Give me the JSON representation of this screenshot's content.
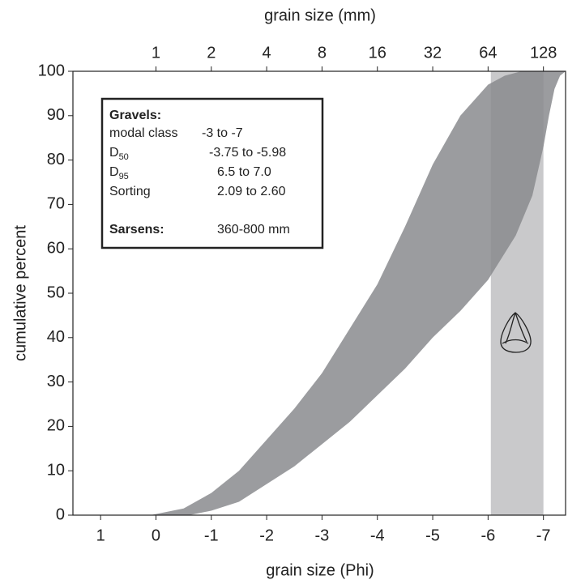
{
  "chart_data": {
    "type": "band",
    "x_label": "grain size (Phi)",
    "x2_label": "grain size (mm)",
    "y_label": "cumulative percent",
    "xlim": [
      1.5,
      -7.4
    ],
    "xticks": [
      1,
      0,
      -1,
      -2,
      -3,
      -4,
      -5,
      -6,
      -7
    ],
    "x2ticks": [
      {
        "value": 0,
        "label": "1"
      },
      {
        "value": -1,
        "label": "2"
      },
      {
        "value": -2,
        "label": "4"
      },
      {
        "value": -3,
        "label": "8"
      },
      {
        "value": -4,
        "label": "16"
      },
      {
        "value": -5,
        "label": "32"
      },
      {
        "value": -6,
        "label": "64"
      },
      {
        "value": -7,
        "label": "128"
      }
    ],
    "ylim": [
      0,
      100
    ],
    "yticks": [
      0,
      10,
      20,
      30,
      40,
      50,
      60,
      70,
      80,
      90,
      100
    ],
    "band_color": "#8a8b8e",
    "series": [
      {
        "x": [
          0.1,
          -0.5,
          -1,
          -1.5,
          -2,
          -2.5,
          -3,
          -3.5,
          -4,
          -4.5,
          -5,
          -5.5,
          -6,
          -6.3,
          -6.6,
          -7.4
        ],
        "values": [
          0,
          1.5,
          5,
          10,
          17,
          24,
          32,
          42,
          52,
          65,
          79,
          90,
          97,
          99,
          100,
          100
        ]
      },
      {
        "x": [
          -0.6,
          -1,
          -1.5,
          -2,
          -2.5,
          -3,
          -3.5,
          -4,
          -4.5,
          -5,
          -5.5,
          -6,
          -6.5,
          -6.8,
          -7,
          -7.1,
          -7.2,
          -7.3,
          -7.4
        ],
        "values": [
          0,
          1,
          3,
          7,
          11,
          16,
          21,
          27,
          33,
          40,
          46,
          53,
          63,
          72,
          83,
          90,
          96,
          99,
          100
        ]
      }
    ],
    "span": {
      "x": [
        -6.05,
        -7.0
      ],
      "color": "#c9c9cb"
    },
    "box": {
      "title": "Gravels:",
      "rows": [
        {
          "label": "modal class",
          "value": "-3 to -7"
        },
        {
          "label": "D",
          "sub": "50",
          "value": "-3.75 to -5.98"
        },
        {
          "label": "D",
          "sub": "95",
          "value": "6.5 to 7.0"
        },
        {
          "label": "Sorting",
          "value": "2.09 to 2.60"
        }
      ],
      "footer_label": "Sarsens:",
      "footer_value": "360-800 mm"
    }
  }
}
